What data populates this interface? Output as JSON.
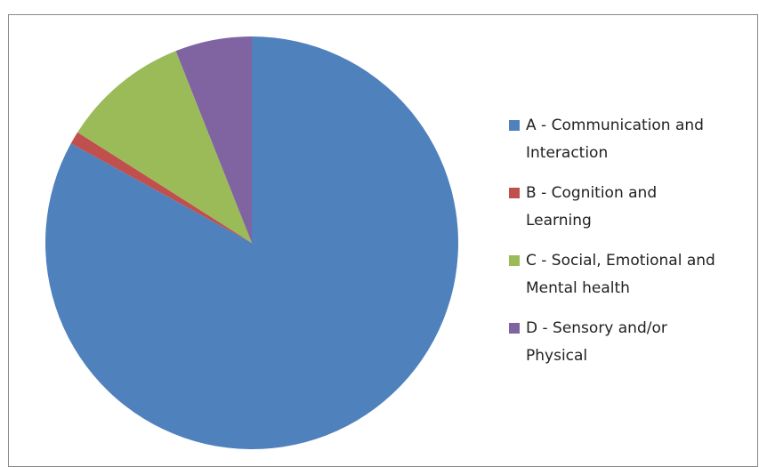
{
  "chart_data": {
    "type": "pie",
    "categories": [
      "A - Communication and Interaction",
      "B - Cognition and Learning",
      "C - Social, Emotional and Mental health",
      "D - Sensory and/or Physical"
    ],
    "values": [
      83,
      1,
      10,
      6
    ],
    "colors": [
      "#4f81bd",
      "#c0504d",
      "#9bbb59",
      "#8064a2"
    ],
    "legend": "right"
  }
}
